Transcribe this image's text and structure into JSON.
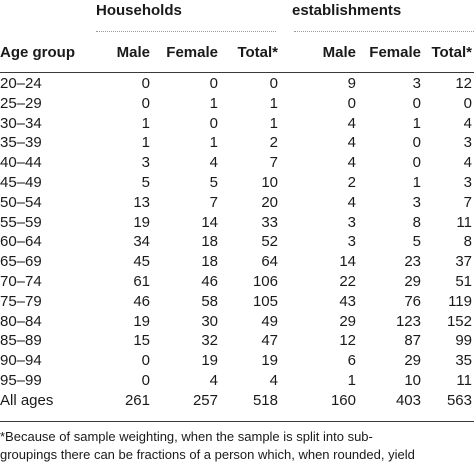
{
  "header": {
    "group_households": "Households",
    "group_establishments": "establishments"
  },
  "columns": {
    "age_group": "Age group",
    "male": "Male",
    "female": "Female",
    "total": "Total*"
  },
  "rows": [
    {
      "age": "20–24",
      "hm": "0",
      "hf": "0",
      "ht": "0",
      "em": "9",
      "ef": "3",
      "et": "12"
    },
    {
      "age": "25–29",
      "hm": "0",
      "hf": "1",
      "ht": "1",
      "em": "0",
      "ef": "0",
      "et": "0"
    },
    {
      "age": "30–34",
      "hm": "1",
      "hf": "0",
      "ht": "1",
      "em": "4",
      "ef": "1",
      "et": "4"
    },
    {
      "age": "35–39",
      "hm": "1",
      "hf": "1",
      "ht": "2",
      "em": "4",
      "ef": "0",
      "et": "3"
    },
    {
      "age": "40–44",
      "hm": "3",
      "hf": "4",
      "ht": "7",
      "em": "4",
      "ef": "0",
      "et": "4"
    },
    {
      "age": "45–49",
      "hm": "5",
      "hf": "5",
      "ht": "10",
      "em": "2",
      "ef": "1",
      "et": "3"
    },
    {
      "age": "50–54",
      "hm": "13",
      "hf": "7",
      "ht": "20",
      "em": "4",
      "ef": "3",
      "et": "7"
    },
    {
      "age": "55–59",
      "hm": "19",
      "hf": "14",
      "ht": "33",
      "em": "3",
      "ef": "8",
      "et": "11"
    },
    {
      "age": "60–64",
      "hm": "34",
      "hf": "18",
      "ht": "52",
      "em": "3",
      "ef": "5",
      "et": "8"
    },
    {
      "age": "65–69",
      "hm": "45",
      "hf": "18",
      "ht": "64",
      "em": "14",
      "ef": "23",
      "et": "37"
    },
    {
      "age": "70–74",
      "hm": "61",
      "hf": "46",
      "ht": "106",
      "em": "22",
      "ef": "29",
      "et": "51"
    },
    {
      "age": "75–79",
      "hm": "46",
      "hf": "58",
      "ht": "105",
      "em": "43",
      "ef": "76",
      "et": "119"
    },
    {
      "age": "80–84",
      "hm": "19",
      "hf": "30",
      "ht": "49",
      "em": "29",
      "ef": "123",
      "et": "152"
    },
    {
      "age": "85–89",
      "hm": "15",
      "hf": "32",
      "ht": "47",
      "em": "12",
      "ef": "87",
      "et": "99"
    },
    {
      "age": "90–94",
      "hm": "0",
      "hf": "19",
      "ht": "19",
      "em": "6",
      "ef": "29",
      "et": "35"
    },
    {
      "age": "95–99",
      "hm": "0",
      "hf": "4",
      "ht": "4",
      "em": "1",
      "ef": "10",
      "et": "11"
    },
    {
      "age": "All ages",
      "hm": "261",
      "hf": "257",
      "ht": "518",
      "em": "160",
      "ef": "403",
      "et": "563"
    }
  ],
  "footnote": {
    "line1": "*Because of sample weighting, when the sample is split into sub-",
    "line2": "groupings there can be fractions of a person which, when rounded, yield"
  }
}
